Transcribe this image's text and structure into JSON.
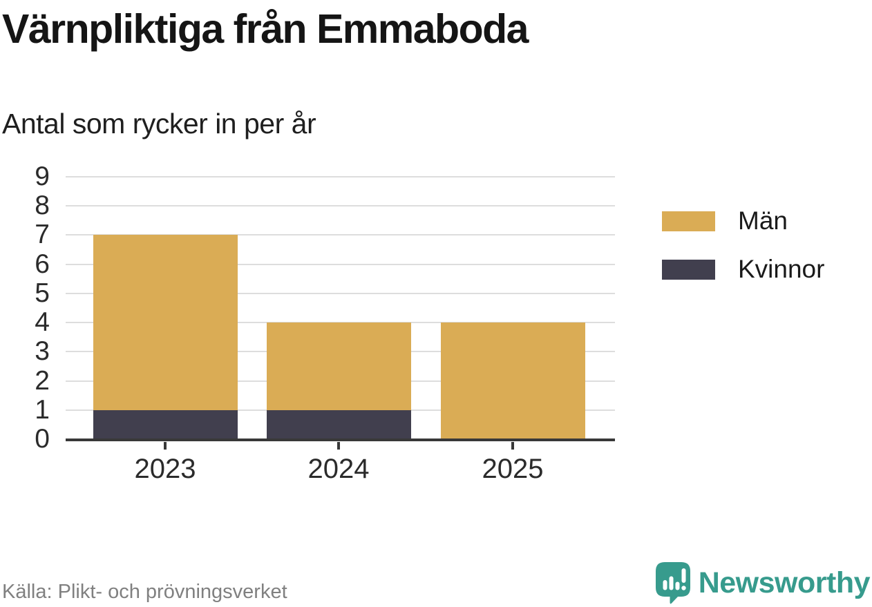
{
  "page": {
    "title": "Värnpliktiga från Emmaboda",
    "subtitle": "Antal som rycker in per år",
    "source": "Källa: Plikt- och prövningsverket",
    "brand": {
      "name": "Newsworthy",
      "logo_icon": "newsworthy-chart-bubble-icon",
      "color": "#379B8D"
    }
  },
  "chart_data": {
    "type": "bar",
    "stacked": true,
    "title": "Värnpliktiga från Emmaboda",
    "subtitle": "Antal som rycker in per år",
    "categories": [
      "2023",
      "2024",
      "2025"
    ],
    "series": [
      {
        "name": "Män",
        "color": "#DAAC55",
        "values": [
          6,
          3,
          4
        ]
      },
      {
        "name": "Kvinnor",
        "color": "#413F4E",
        "values": [
          1,
          1,
          0
        ]
      }
    ],
    "stack_bottom_to_top": [
      "Kvinnor",
      "Män"
    ],
    "stacked_totals": [
      7,
      4,
      4
    ],
    "xlabel": "",
    "ylabel": "",
    "ylim": [
      0,
      9
    ],
    "yticks": [
      0,
      1,
      2,
      3,
      4,
      5,
      6,
      7,
      8,
      9
    ],
    "grid": "horizontal",
    "legend_position": "right",
    "legend": [
      "Män",
      "Kvinnor"
    ],
    "source": "Källa: Plikt- och prövningsverket",
    "colors": {
      "grid": "#DDDDDD",
      "axis": "#383838",
      "tick_text": "#2B2B2B",
      "source_text": "#808080"
    }
  }
}
